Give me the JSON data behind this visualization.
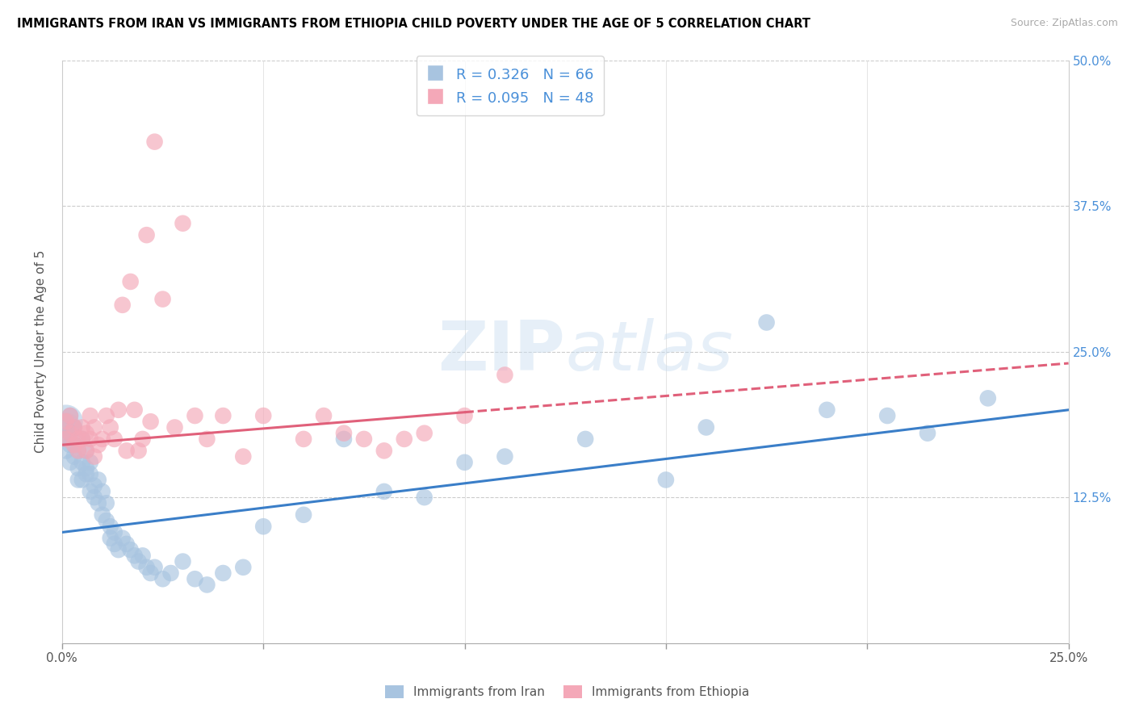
{
  "title": "IMMIGRANTS FROM IRAN VS IMMIGRANTS FROM ETHIOPIA CHILD POVERTY UNDER THE AGE OF 5 CORRELATION CHART",
  "source": "Source: ZipAtlas.com",
  "ylabel": "Child Poverty Under the Age of 5",
  "xlabel_iran": "Immigrants from Iran",
  "xlabel_ethiopia": "Immigrants from Ethiopia",
  "iran_R": 0.326,
  "iran_N": 66,
  "ethiopia_R": 0.095,
  "ethiopia_N": 48,
  "xlim": [
    0.0,
    0.25
  ],
  "ylim": [
    0.0,
    0.5
  ],
  "iran_color": "#a8c4e0",
  "ethiopia_color": "#f4a8b8",
  "iran_line_color": "#3a7ec8",
  "ethiopia_line_color": "#e0607a",
  "iran_x": [
    0.001,
    0.001,
    0.001,
    0.002,
    0.002,
    0.002,
    0.002,
    0.003,
    0.003,
    0.003,
    0.004,
    0.004,
    0.004,
    0.005,
    0.005,
    0.005,
    0.006,
    0.006,
    0.006,
    0.007,
    0.007,
    0.007,
    0.008,
    0.008,
    0.009,
    0.009,
    0.01,
    0.01,
    0.011,
    0.011,
    0.012,
    0.012,
    0.013,
    0.013,
    0.014,
    0.015,
    0.016,
    0.017,
    0.018,
    0.019,
    0.02,
    0.021,
    0.022,
    0.023,
    0.025,
    0.027,
    0.03,
    0.033,
    0.036,
    0.04,
    0.045,
    0.05,
    0.06,
    0.07,
    0.08,
    0.09,
    0.1,
    0.11,
    0.13,
    0.15,
    0.16,
    0.175,
    0.19,
    0.205,
    0.215,
    0.23
  ],
  "iran_y": [
    0.165,
    0.185,
    0.175,
    0.17,
    0.18,
    0.155,
    0.195,
    0.16,
    0.185,
    0.17,
    0.15,
    0.14,
    0.165,
    0.175,
    0.155,
    0.14,
    0.145,
    0.165,
    0.15,
    0.155,
    0.13,
    0.145,
    0.135,
    0.125,
    0.14,
    0.12,
    0.13,
    0.11,
    0.12,
    0.105,
    0.1,
    0.09,
    0.095,
    0.085,
    0.08,
    0.09,
    0.085,
    0.08,
    0.075,
    0.07,
    0.075,
    0.065,
    0.06,
    0.065,
    0.055,
    0.06,
    0.07,
    0.055,
    0.05,
    0.06,
    0.065,
    0.1,
    0.11,
    0.175,
    0.13,
    0.125,
    0.155,
    0.16,
    0.175,
    0.14,
    0.185,
    0.275,
    0.2,
    0.195,
    0.18,
    0.21
  ],
  "ethiopia_x": [
    0.001,
    0.001,
    0.002,
    0.002,
    0.003,
    0.003,
    0.004,
    0.004,
    0.005,
    0.005,
    0.006,
    0.006,
    0.007,
    0.007,
    0.008,
    0.008,
    0.009,
    0.01,
    0.011,
    0.012,
    0.013,
    0.014,
    0.015,
    0.016,
    0.017,
    0.018,
    0.019,
    0.02,
    0.021,
    0.022,
    0.023,
    0.025,
    0.028,
    0.03,
    0.033,
    0.036,
    0.04,
    0.045,
    0.05,
    0.06,
    0.065,
    0.07,
    0.075,
    0.08,
    0.085,
    0.09,
    0.1,
    0.11
  ],
  "ethiopia_y": [
    0.19,
    0.175,
    0.195,
    0.18,
    0.185,
    0.17,
    0.175,
    0.165,
    0.185,
    0.175,
    0.18,
    0.165,
    0.195,
    0.175,
    0.185,
    0.16,
    0.17,
    0.175,
    0.195,
    0.185,
    0.175,
    0.2,
    0.29,
    0.165,
    0.31,
    0.2,
    0.165,
    0.175,
    0.35,
    0.19,
    0.43,
    0.295,
    0.185,
    0.36,
    0.195,
    0.175,
    0.195,
    0.16,
    0.195,
    0.175,
    0.195,
    0.18,
    0.175,
    0.165,
    0.175,
    0.18,
    0.195,
    0.23
  ]
}
